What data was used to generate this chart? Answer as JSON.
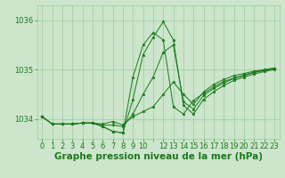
{
  "bg_color": "#cce5cc",
  "grid_color": "#99cc99",
  "line_color": "#1a7a1a",
  "marker_color": "#1a7a1a",
  "title": "Graphe pression niveau de la mer (hPa)",
  "ylabel_ticks": [
    1034,
    1035,
    1036
  ],
  "xlim": [
    -0.5,
    23.5
  ],
  "ylim": [
    1033.6,
    1036.3
  ],
  "series": [
    [
      1034.05,
      1033.9,
      1033.9,
      1033.9,
      1033.92,
      1033.92,
      1033.9,
      1033.95,
      1033.88,
      1034.05,
      1034.15,
      1034.25,
      1034.5,
      1034.75,
      1034.5,
      1034.3,
      1034.55,
      1034.7,
      1034.8,
      1034.88,
      1034.92,
      1034.97,
      1035.0,
      1035.03
    ],
    [
      1034.05,
      1033.9,
      1033.9,
      1033.9,
      1033.92,
      1033.92,
      1033.88,
      1033.88,
      1033.85,
      1034.1,
      1034.5,
      1034.85,
      1035.35,
      1035.5,
      1034.35,
      1034.2,
      1034.48,
      1034.62,
      1034.73,
      1034.82,
      1034.88,
      1034.94,
      1034.98,
      1035.02
    ],
    [
      1034.05,
      1033.9,
      1033.9,
      1033.9,
      1033.92,
      1033.92,
      1033.85,
      1033.75,
      1033.72,
      1034.4,
      1035.3,
      1035.65,
      1035.97,
      1035.6,
      1034.28,
      1034.1,
      1034.4,
      1034.55,
      1034.68,
      1034.78,
      1034.85,
      1034.91,
      1034.96,
      1035.0
    ],
    [
      1034.05,
      1033.9,
      1033.9,
      1033.9,
      1033.92,
      1033.92,
      1033.85,
      1033.75,
      1033.72,
      1034.85,
      1035.5,
      1035.75,
      1035.6,
      1034.25,
      1034.1,
      1034.38,
      1034.52,
      1034.65,
      1034.76,
      1034.83,
      1034.89,
      1034.95,
      1034.99,
      1035.03
    ]
  ],
  "figsize": [
    3.2,
    2.0
  ],
  "dpi": 100,
  "title_fontsize": 7.5,
  "tick_fontsize": 6.0
}
